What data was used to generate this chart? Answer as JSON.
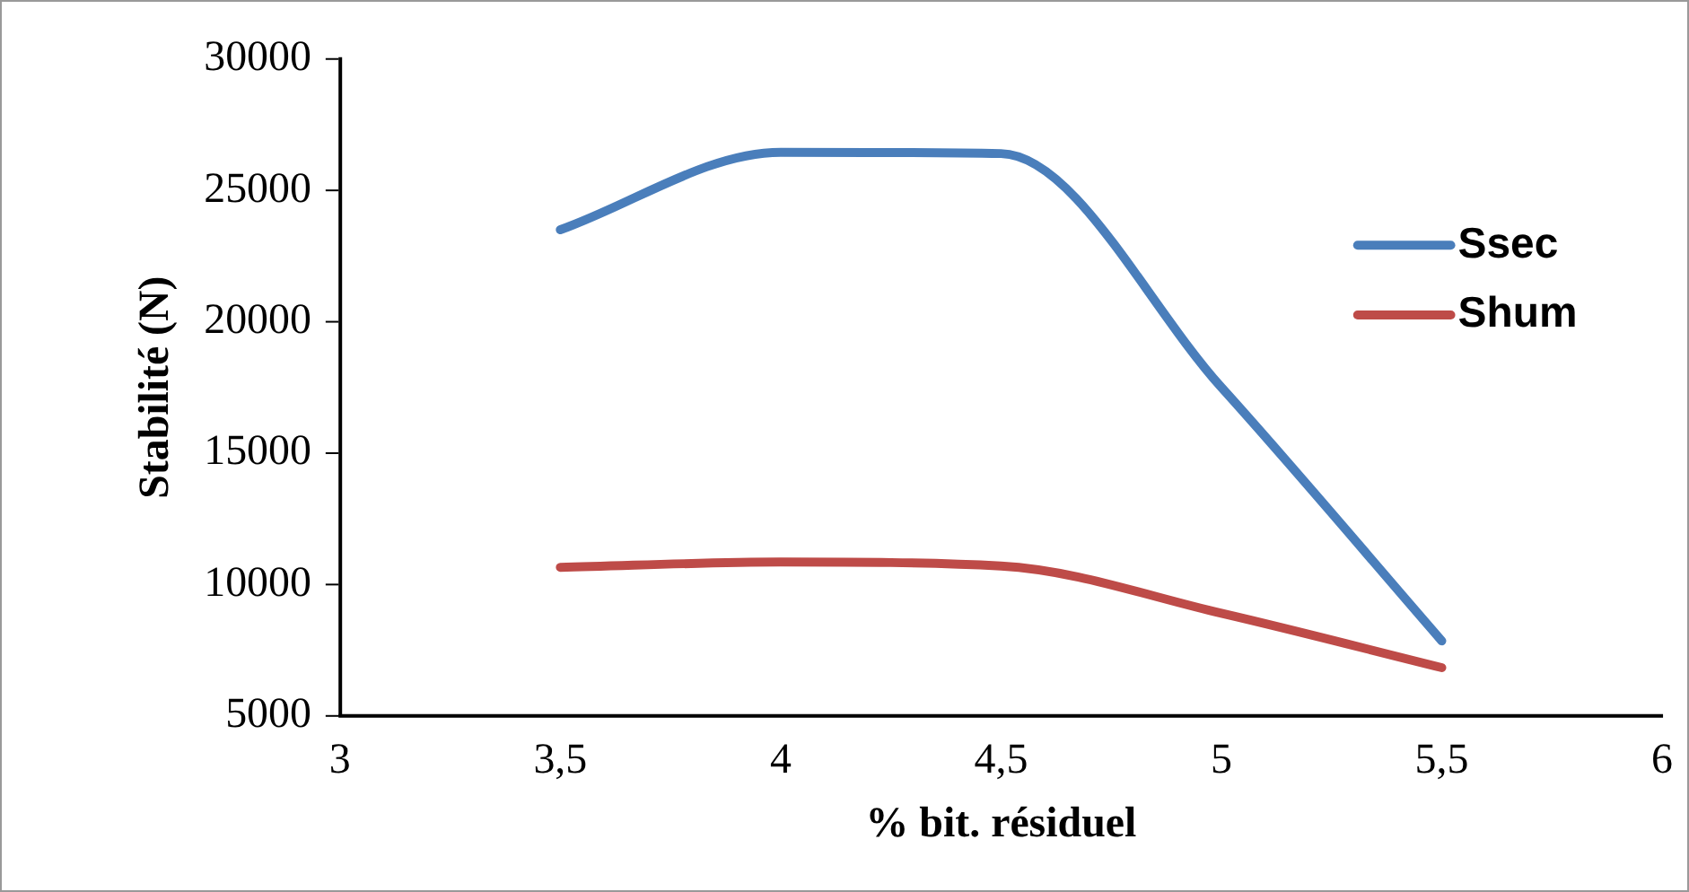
{
  "chart_data": {
    "type": "line",
    "xlabel": "% bit. résiduel",
    "ylabel": "Stabilité (N)",
    "x": [
      3.5,
      4,
      4.5,
      5,
      5.5
    ],
    "series": [
      {
        "name": "Ssec",
        "color": "#4a7ebb",
        "values": [
          23500,
          26450,
          26400,
          17500,
          7850
        ]
      },
      {
        "name": "Shum",
        "color": "#be4b48",
        "values": [
          10650,
          10850,
          10700,
          8900,
          6830
        ]
      }
    ],
    "xlim": [
      3,
      6
    ],
    "xticks": [
      3,
      {
        "value": 3.5,
        "label": "3,5"
      },
      4,
      {
        "value": 4.5,
        "label": "4,5"
      },
      5,
      {
        "value": 5.5,
        "label": "5,5"
      },
      6
    ],
    "ylim": [
      5000,
      30000
    ],
    "yticks": [
      5000,
      10000,
      15000,
      20000,
      25000,
      30000
    ],
    "grid": false,
    "legend": "right",
    "marker": "none",
    "line_style": "solid"
  }
}
